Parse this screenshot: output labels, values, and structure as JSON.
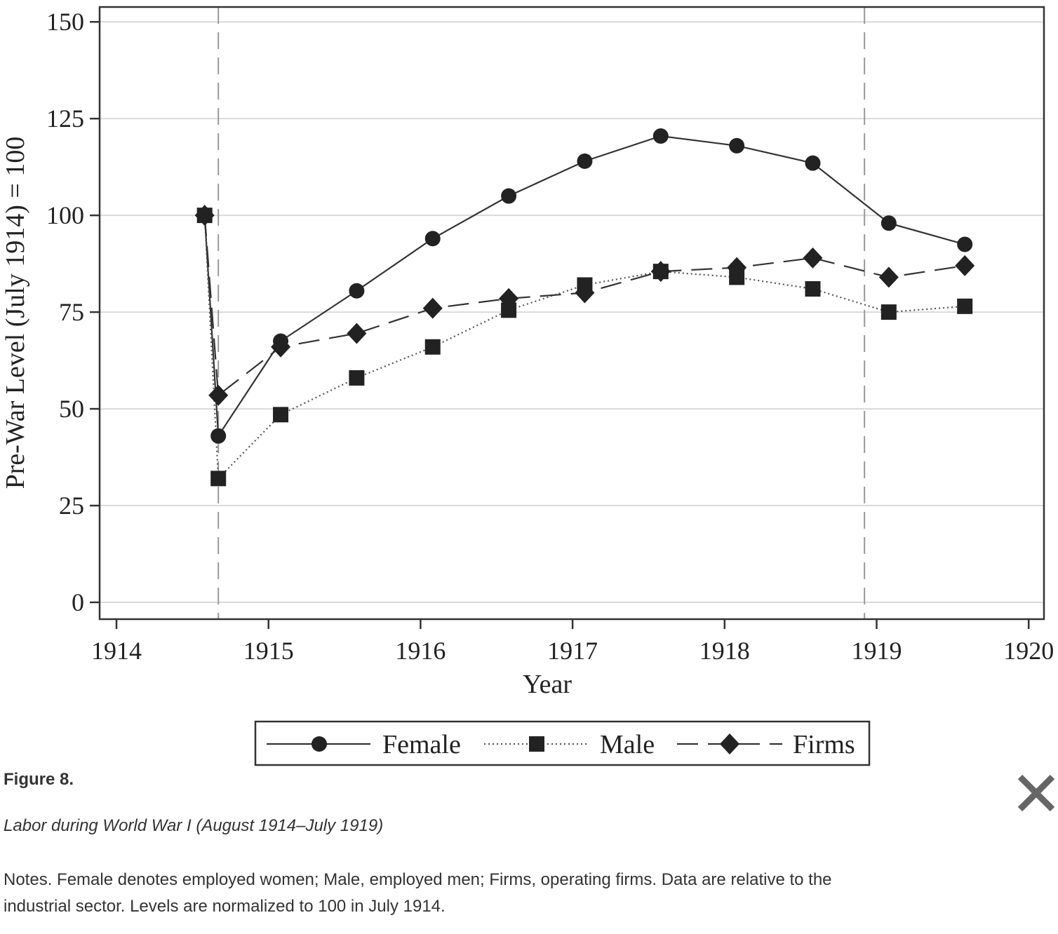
{
  "figure": {
    "label": "Figure 8.",
    "title": "Labor during World War I (August 1914–July 1919)",
    "notes": "Notes. Female denotes employed women; Male, employed men; Firms, operating firms. Data are relative to the industrial sector. Levels are normalized to 100 in July 1914."
  },
  "chart_data": {
    "type": "line",
    "xlabel": "Year",
    "ylabel": "Pre-War Level (July 1914) = 100",
    "xlim": [
      1914,
      1920
    ],
    "ylim": [
      0,
      150
    ],
    "x_ticks": [
      "1914",
      "1915",
      "1916",
      "1917",
      "1918",
      "1919",
      "1920"
    ],
    "y_ticks": [
      "0",
      "25",
      "50",
      "75",
      "100",
      "125",
      "150"
    ],
    "grid": "horizontal",
    "vertical_reference_lines": [
      1914.67,
      1918.92
    ],
    "legend_position": "bottom",
    "series": [
      {
        "name": "Female",
        "line_style": "solid",
        "marker": "circle",
        "x": [
          1914.58,
          1914.67,
          1915.08,
          1915.58,
          1916.08,
          1916.58,
          1917.08,
          1917.58,
          1918.08,
          1918.58,
          1919.08,
          1919.58
        ],
        "values": [
          100,
          43,
          67.5,
          80.5,
          94,
          105,
          114,
          120.5,
          118,
          113.5,
          98,
          92.5
        ]
      },
      {
        "name": "Male",
        "line_style": "dotted",
        "marker": "square",
        "x": [
          1914.58,
          1914.67,
          1915.08,
          1915.58,
          1916.08,
          1916.58,
          1917.08,
          1917.58,
          1918.08,
          1918.58,
          1919.08,
          1919.58
        ],
        "values": [
          100,
          32,
          48.5,
          58,
          66,
          75.5,
          82,
          85.5,
          84,
          81,
          75,
          76.5
        ]
      },
      {
        "name": "Firms",
        "line_style": "dashed",
        "marker": "diamond",
        "x": [
          1914.58,
          1914.67,
          1915.08,
          1915.58,
          1916.08,
          1916.58,
          1917.08,
          1917.58,
          1918.08,
          1918.58,
          1919.08,
          1919.58
        ],
        "values": [
          100,
          53.5,
          66,
          69.5,
          76,
          78.5,
          80,
          85.5,
          86.5,
          89,
          84,
          87
        ]
      }
    ]
  },
  "close_icon": "close-icon"
}
